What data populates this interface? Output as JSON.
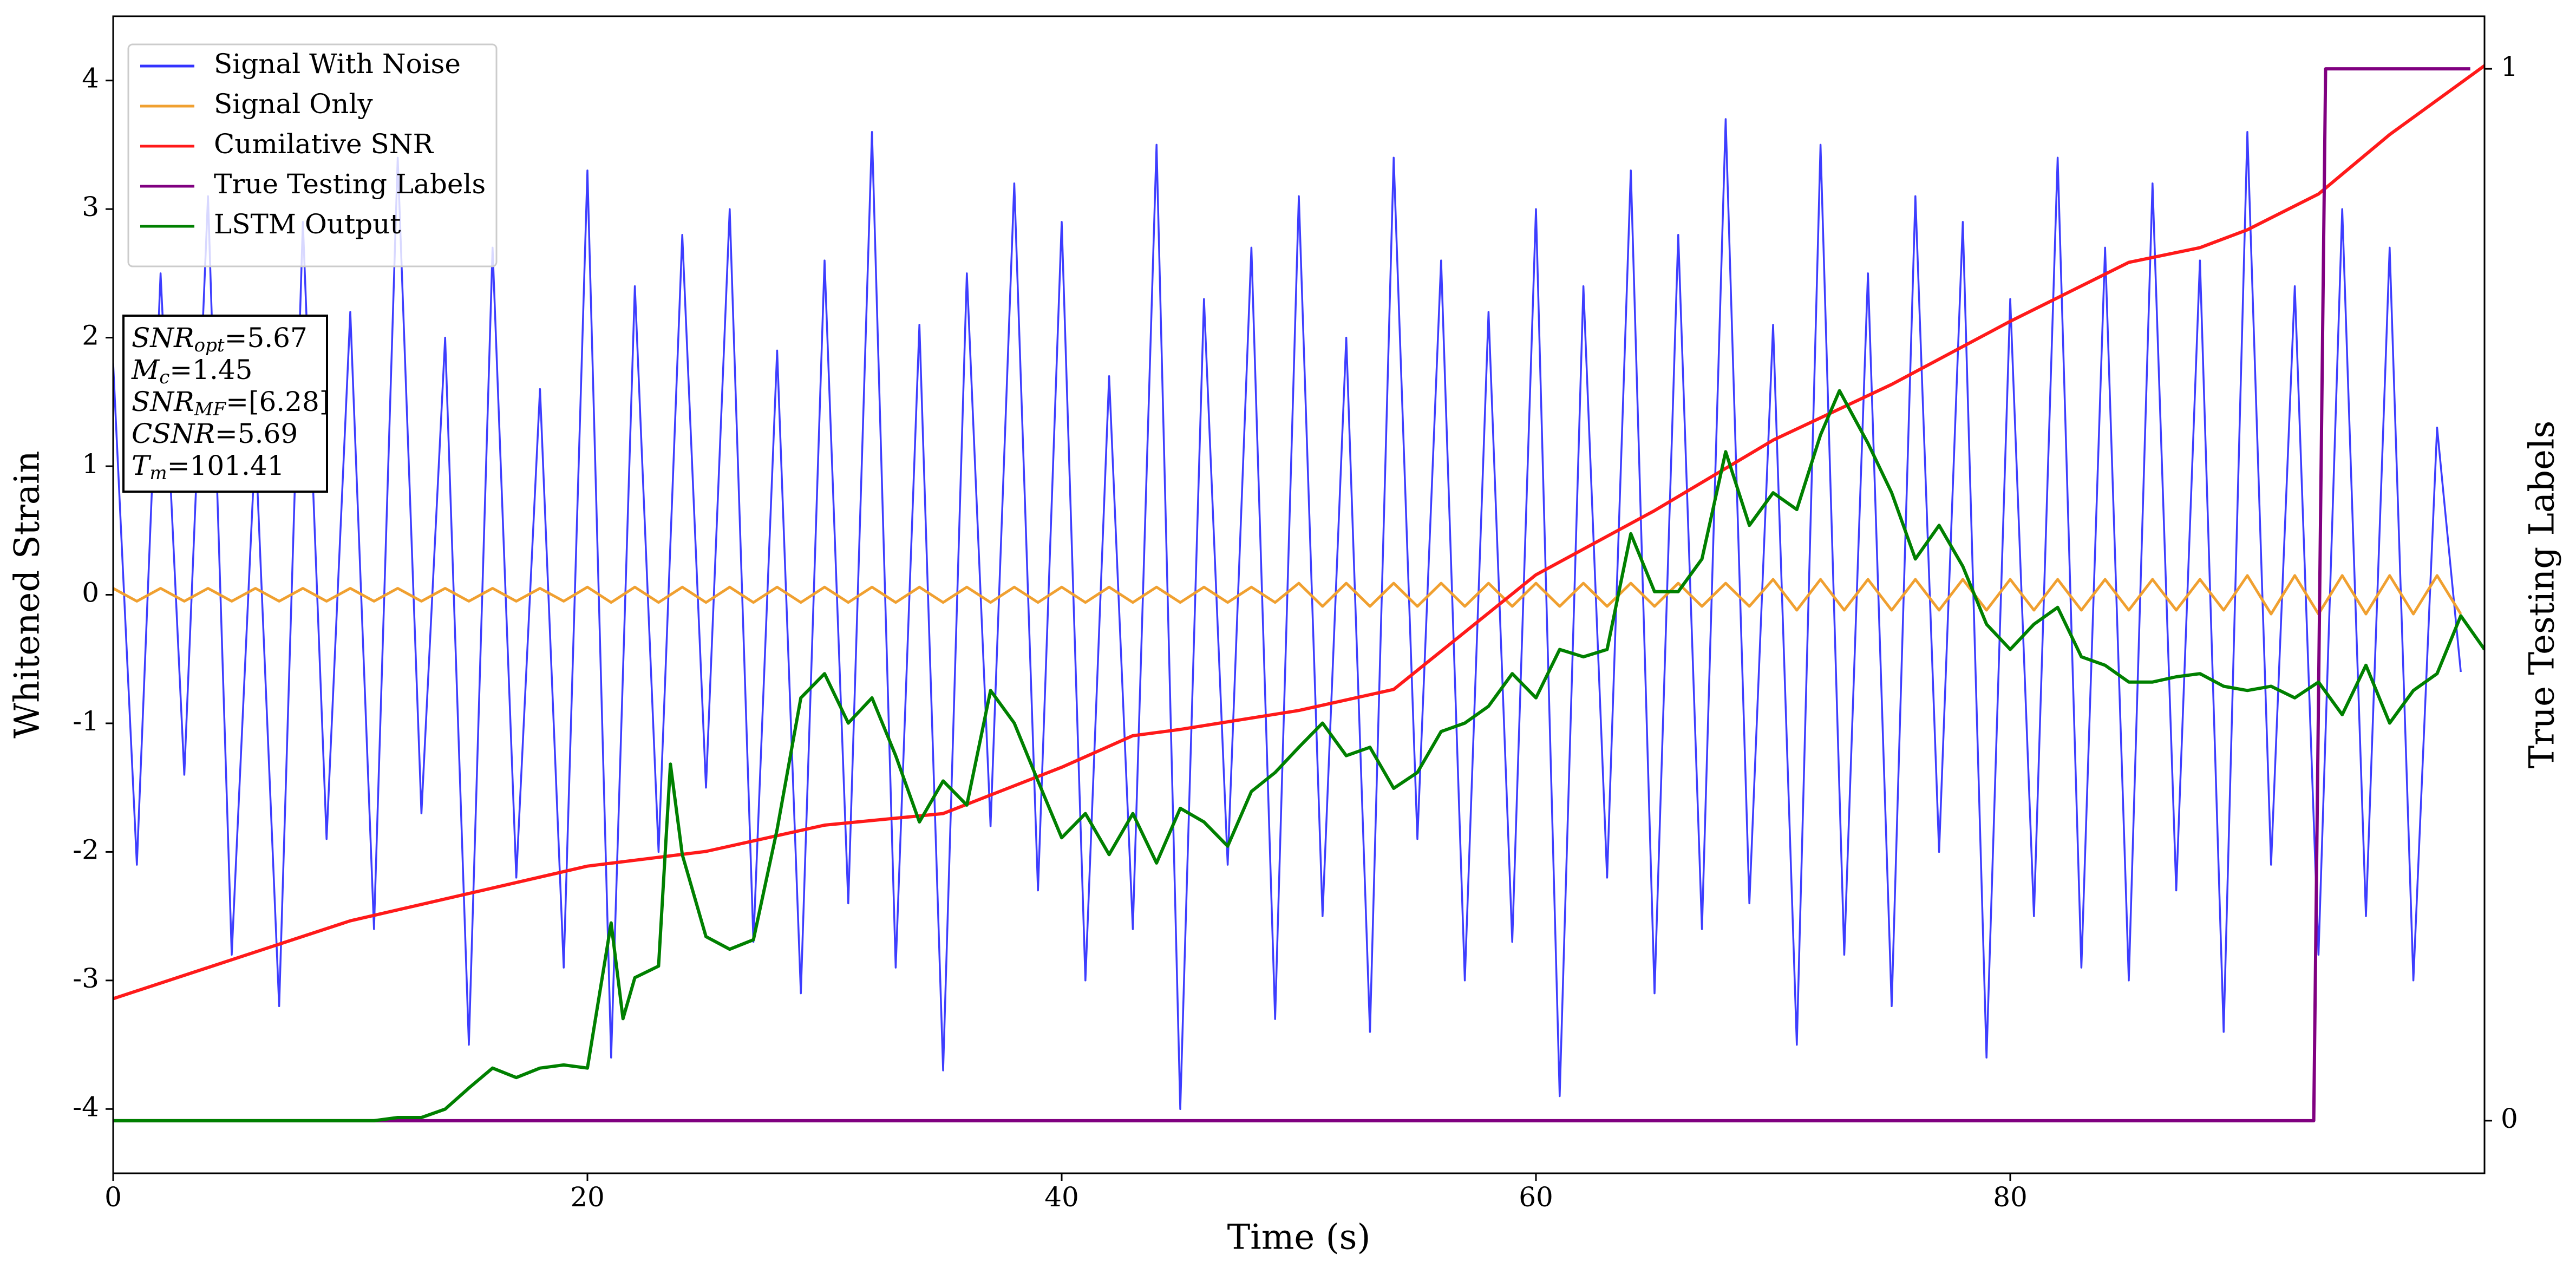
{
  "chart_data": {
    "type": "line",
    "xlabel": "Time (s)",
    "ylabel": "Whitened Strain",
    "y2label": "True Testing Labels",
    "xlim": [
      0,
      100
    ],
    "ylim": [
      -4.5,
      4.5
    ],
    "y2lim": [
      -0.05,
      1.05
    ],
    "xticks": [
      0,
      20,
      40,
      60,
      80
    ],
    "yticks": [
      -4,
      -3,
      -2,
      -1,
      0,
      1,
      2,
      3,
      4
    ],
    "y2ticks": [
      0,
      1
    ],
    "legend": "upper left",
    "x": [
      0,
      1,
      2,
      3,
      4,
      5,
      6,
      7,
      8,
      9,
      10,
      11,
      12,
      13,
      14,
      15,
      16,
      17,
      18,
      19,
      20,
      21,
      22,
      23,
      24,
      25,
      26,
      27,
      28,
      29,
      30,
      31,
      32,
      33,
      34,
      35,
      36,
      37,
      38,
      39,
      40,
      41,
      42,
      43,
      44,
      45,
      46,
      47,
      48,
      49,
      50,
      51,
      52,
      53,
      54,
      55,
      56,
      57,
      58,
      59,
      60,
      61,
      62,
      63,
      64,
      65,
      66,
      67,
      68,
      69,
      70,
      71,
      72,
      73,
      74,
      75,
      76,
      77,
      78,
      79,
      80,
      81,
      82,
      83,
      84,
      85,
      86,
      87,
      88,
      89,
      90,
      91,
      92,
      93,
      94,
      95,
      96,
      97,
      98,
      99
    ],
    "series": [
      {
        "name": "Signal With Noise",
        "color": "#3333ff",
        "values": [
          1.8,
          -2.1,
          2.5,
          -1.4,
          3.1,
          -2.8,
          1.2,
          -3.2,
          2.9,
          -1.9,
          2.2,
          -2.6,
          3.4,
          -1.7,
          2.0,
          -3.5,
          2.7,
          -2.2,
          1.6,
          -2.9,
          3.3,
          -3.6,
          2.4,
          -2.0,
          2.8,
          -1.5,
          3.0,
          -2.7,
          1.9,
          -3.1,
          2.6,
          -2.4,
          3.6,
          -2.9,
          2.1,
          -3.7,
          2.5,
          -1.8,
          3.2,
          -2.3,
          2.9,
          -3.0,
          1.7,
          -2.6,
          3.5,
          -4.0,
          2.3,
          -2.1,
          2.7,
          -3.3,
          3.1,
          -2.5,
          2.0,
          -3.4,
          3.4,
          -1.9,
          2.6,
          -3.0,
          2.2,
          -2.7,
          3.0,
          -3.9,
          2.4,
          -2.2,
          3.3,
          -3.1,
          2.8,
          -2.6,
          3.7,
          -2.4,
          2.1,
          -3.5,
          3.5,
          -2.8,
          2.5,
          -3.2,
          3.1,
          -2.0,
          2.9,
          -3.6,
          2.3,
          -2.5,
          3.4,
          -2.9,
          2.7,
          -3.0,
          3.2,
          -2.3,
          2.6,
          -3.4,
          3.6,
          -2.1,
          2.4,
          -2.8,
          3.0,
          -2.5,
          2.7,
          -3.0,
          1.3,
          -0.6
        ]
      },
      {
        "name": "Signal Only",
        "color": "#f0a030",
        "values": [
          0.05,
          -0.05,
          0.05,
          -0.05,
          0.05,
          -0.05,
          0.05,
          -0.05,
          0.05,
          -0.05,
          0.05,
          -0.05,
          0.05,
          -0.05,
          0.05,
          -0.05,
          0.05,
          -0.05,
          0.05,
          -0.05,
          0.06,
          -0.06,
          0.06,
          -0.06,
          0.06,
          -0.06,
          0.06,
          -0.06,
          0.06,
          -0.06,
          0.06,
          -0.06,
          0.06,
          -0.06,
          0.06,
          -0.06,
          0.06,
          -0.06,
          0.06,
          -0.06,
          0.06,
          -0.06,
          0.06,
          -0.06,
          0.06,
          -0.06,
          0.06,
          -0.06,
          0.06,
          -0.06,
          0.09,
          -0.09,
          0.09,
          -0.09,
          0.09,
          -0.09,
          0.09,
          -0.09,
          0.09,
          -0.09,
          0.09,
          -0.09,
          0.09,
          -0.09,
          0.09,
          -0.09,
          0.09,
          -0.09,
          0.09,
          -0.09,
          0.12,
          -0.12,
          0.12,
          -0.12,
          0.12,
          -0.12,
          0.12,
          -0.12,
          0.12,
          -0.12,
          0.12,
          -0.12,
          0.12,
          -0.12,
          0.12,
          -0.12,
          0.12,
          -0.12,
          0.12,
          -0.12,
          0.15,
          -0.15,
          0.15,
          -0.15,
          0.15,
          -0.15,
          0.15,
          -0.15,
          0.15,
          -0.15
        ]
      },
      {
        "name": "Cumilative SNR",
        "color": "#ff1a1a",
        "axis": "y2",
        "x": [
          0,
          10,
          20,
          25,
          30,
          35,
          40,
          43,
          45,
          50,
          54,
          60,
          65,
          70,
          75,
          80,
          85,
          88,
          90,
          93,
          96,
          100
        ],
        "values": [
          0.116,
          0.19,
          0.242,
          0.256,
          0.281,
          0.292,
          0.336,
          0.366,
          0.372,
          0.39,
          0.41,
          0.519,
          0.58,
          0.647,
          0.7,
          0.76,
          0.816,
          0.83,
          0.847,
          0.881,
          0.9375,
          1.003
        ]
      },
      {
        "name": "True Testing Labels",
        "color": "#800080",
        "axis": "y2",
        "x": [
          0,
          92.8,
          93.3,
          99.4
        ],
        "values": [
          0,
          0,
          1,
          1
        ]
      },
      {
        "name": "LSTM Output",
        "color": "#008000",
        "axis": "y2",
        "x": [
          0,
          11,
          12,
          13,
          14,
          15,
          16,
          17,
          18,
          19,
          20,
          21,
          21.5,
          22,
          23,
          23.5,
          24,
          25,
          26,
          27,
          28,
          29,
          30,
          31,
          32,
          33,
          34,
          35,
          36,
          37,
          38,
          39,
          40,
          41,
          42,
          43,
          44,
          45,
          46,
          47,
          48,
          49,
          50,
          51,
          52,
          53,
          54,
          55,
          56,
          57,
          58,
          59,
          60,
          61,
          62,
          63,
          64,
          65,
          66,
          67,
          68,
          69,
          70,
          71,
          72,
          72.8,
          74,
          75,
          76,
          77,
          78,
          79,
          80,
          81,
          82,
          83,
          84,
          85,
          86,
          87,
          88,
          89,
          90,
          91,
          92,
          93,
          94,
          95,
          96,
          97,
          98,
          99,
          100
        ],
        "values": [
          0,
          0,
          0.003,
          0.003,
          0.011,
          0.031,
          0.05,
          0.041,
          0.05,
          0.053,
          0.05,
          0.188,
          0.097,
          0.136,
          0.147,
          0.339,
          0.253,
          0.175,
          0.163,
          0.172,
          0.277,
          0.402,
          0.425,
          0.378,
          0.402,
          0.347,
          0.284,
          0.323,
          0.3,
          0.409,
          0.378,
          0.323,
          0.269,
          0.292,
          0.253,
          0.292,
          0.245,
          0.297,
          0.284,
          0.261,
          0.313,
          0.331,
          0.355,
          0.378,
          0.347,
          0.355,
          0.316,
          0.331,
          0.37,
          0.378,
          0.394,
          0.425,
          0.402,
          0.448,
          0.441,
          0.448,
          0.558,
          0.503,
          0.503,
          0.534,
          0.636,
          0.566,
          0.597,
          0.581,
          0.652,
          0.694,
          0.644,
          0.597,
          0.534,
          0.566,
          0.527,
          0.472,
          0.448,
          0.472,
          0.488,
          0.441,
          0.433,
          0.417,
          0.417,
          0.422,
          0.425,
          0.413,
          0.409,
          0.413,
          0.402,
          0.417,
          0.386,
          0.433,
          0.378,
          0.409,
          0.425,
          0.48,
          0.448
        ]
      }
    ],
    "annotation": {
      "lines": [
        [
          "SNR",
          "opt",
          "=5.67"
        ],
        [
          "M",
          "c",
          "=1.45"
        ],
        [
          "SNR",
          "MF",
          "=[6.28]"
        ],
        [
          "CSNR",
          "",
          "=5.69"
        ],
        [
          "T",
          "m",
          "=101.41"
        ]
      ]
    }
  }
}
